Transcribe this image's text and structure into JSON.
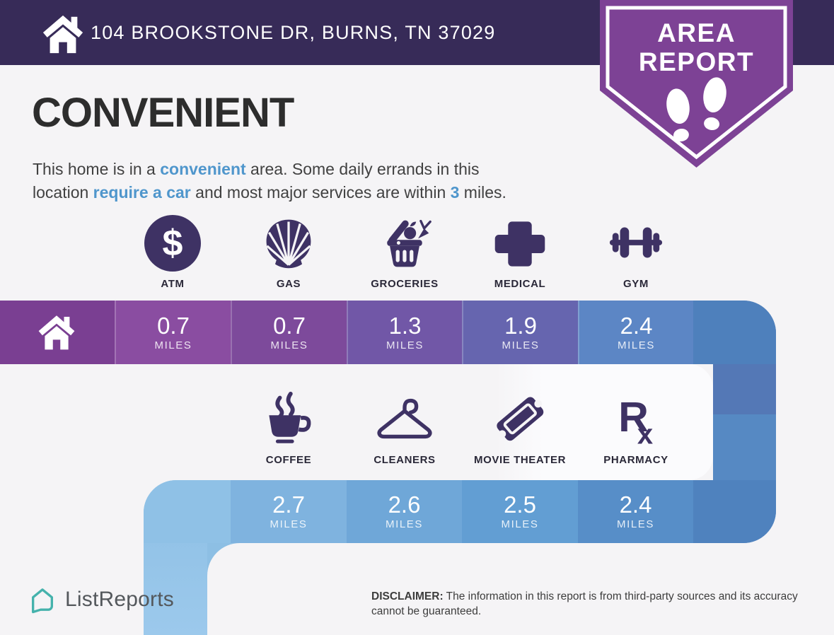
{
  "header": {
    "address": "104 BROOKSTONE DR, BURNS, TN 37029"
  },
  "badge": {
    "line1": "AREA",
    "line2": "REPORT"
  },
  "summary": {
    "title": "CONVENIENT",
    "lines": [
      [
        {
          "t": "This home is in a "
        },
        {
          "t": "convenient",
          "hl": true
        },
        {
          "t": " area. Some daily errands in this"
        }
      ],
      [
        {
          "t": "location "
        },
        {
          "t": "require a car",
          "hl": true
        },
        {
          "t": " and most major services are within "
        },
        {
          "t": "3",
          "hl": true
        },
        {
          "t": " miles."
        }
      ]
    ]
  },
  "amenities_row1": [
    {
      "label": "ATM",
      "icon": "atm-icon",
      "distance": "0.7",
      "unit": "MILES"
    },
    {
      "label": "GAS",
      "icon": "gas-shell-icon",
      "distance": "0.7",
      "unit": "MILES"
    },
    {
      "label": "GROCERIES",
      "icon": "grocery-basket-icon",
      "distance": "1.3",
      "unit": "MILES"
    },
    {
      "label": "MEDICAL",
      "icon": "medical-cross-icon",
      "distance": "1.9",
      "unit": "MILES"
    },
    {
      "label": "GYM",
      "icon": "dumbbell-icon",
      "distance": "2.4",
      "unit": "MILES"
    }
  ],
  "amenities_row2": [
    {
      "label": "COFFEE",
      "icon": "coffee-cup-icon",
      "distance": "2.7",
      "unit": "MILES"
    },
    {
      "label": "CLEANERS",
      "icon": "hanger-icon",
      "distance": "2.6",
      "unit": "MILES"
    },
    {
      "label": "MOVIE THEATER",
      "icon": "ticket-icon",
      "distance": "2.5",
      "unit": "MILES"
    },
    {
      "label": "PHARMACY",
      "icon": "rx-icon",
      "distance": "2.4",
      "unit": "MILES"
    }
  ],
  "footer": {
    "brand": "ListReports",
    "disclaimer_label": "DISCLAIMER:",
    "disclaimer_text": " The information in this report is from third-party sources and its accuracy cannot be guaranteed."
  },
  "colors": {
    "header_bg": "#372B58",
    "badge_bg": "#7D4295",
    "accent_blue": "#4F96CC",
    "icon_dark": "#3E3264",
    "brand_teal": "#45B2AC",
    "bar1_segments": [
      "#7A3F92",
      "#8A4DA1",
      "#7D4A9B",
      "#7157A7",
      "#6665AF",
      "#5C86C5",
      "#4E80BC"
    ],
    "bar2_segments": [
      "#8FC1E6",
      "#7FB3DF",
      "#6FA7D8",
      "#629ED3",
      "#578EC8",
      "#4F82BE"
    ],
    "right_column_top": "#5478B6",
    "right_column_bottom": "#5689C3",
    "left_column_top": "#8DBFE4",
    "left_column_bottom": "#9CC9EC"
  }
}
